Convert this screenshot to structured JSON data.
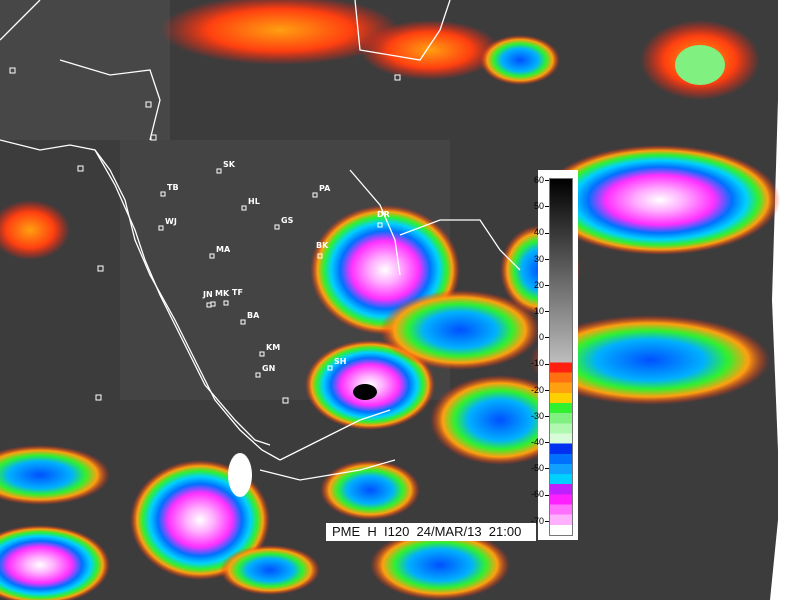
{
  "caption": "PME  H  I120  24/MAR/13  21:00",
  "legend": {
    "ticks": [
      "60",
      "50",
      "40",
      "30",
      "20",
      "10",
      "0",
      "-10",
      "-20",
      "-30",
      "-40",
      "-50",
      "-60",
      "-70"
    ],
    "cold_colors": [
      "#ff2010",
      "#ff7010",
      "#ffa010",
      "#ffd000",
      "#30f030",
      "#80f080",
      "#b0f8b0",
      "#d8fcd8",
      "#0030f0",
      "#0070ff",
      "#10a0ff",
      "#00d0ff",
      "#c020ff",
      "#ff20ff",
      "#ff70ff",
      "#ffb0ff",
      "#ffffff"
    ]
  },
  "colors": {
    "background": "#3c3c3c",
    "coastline": "#ffffff"
  },
  "stations": [
    {
      "code": "SK"
    },
    {
      "code": "TB"
    },
    {
      "code": "HL"
    },
    {
      "code": "PA"
    },
    {
      "code": "GS"
    },
    {
      "code": "WJ"
    },
    {
      "code": "MA"
    },
    {
      "code": "BK"
    },
    {
      "code": "DR"
    },
    {
      "code": "JN"
    },
    {
      "code": "MK"
    },
    {
      "code": "TF"
    },
    {
      "code": "BA"
    },
    {
      "code": "KM"
    },
    {
      "code": "GN"
    },
    {
      "code": "SH"
    }
  ]
}
